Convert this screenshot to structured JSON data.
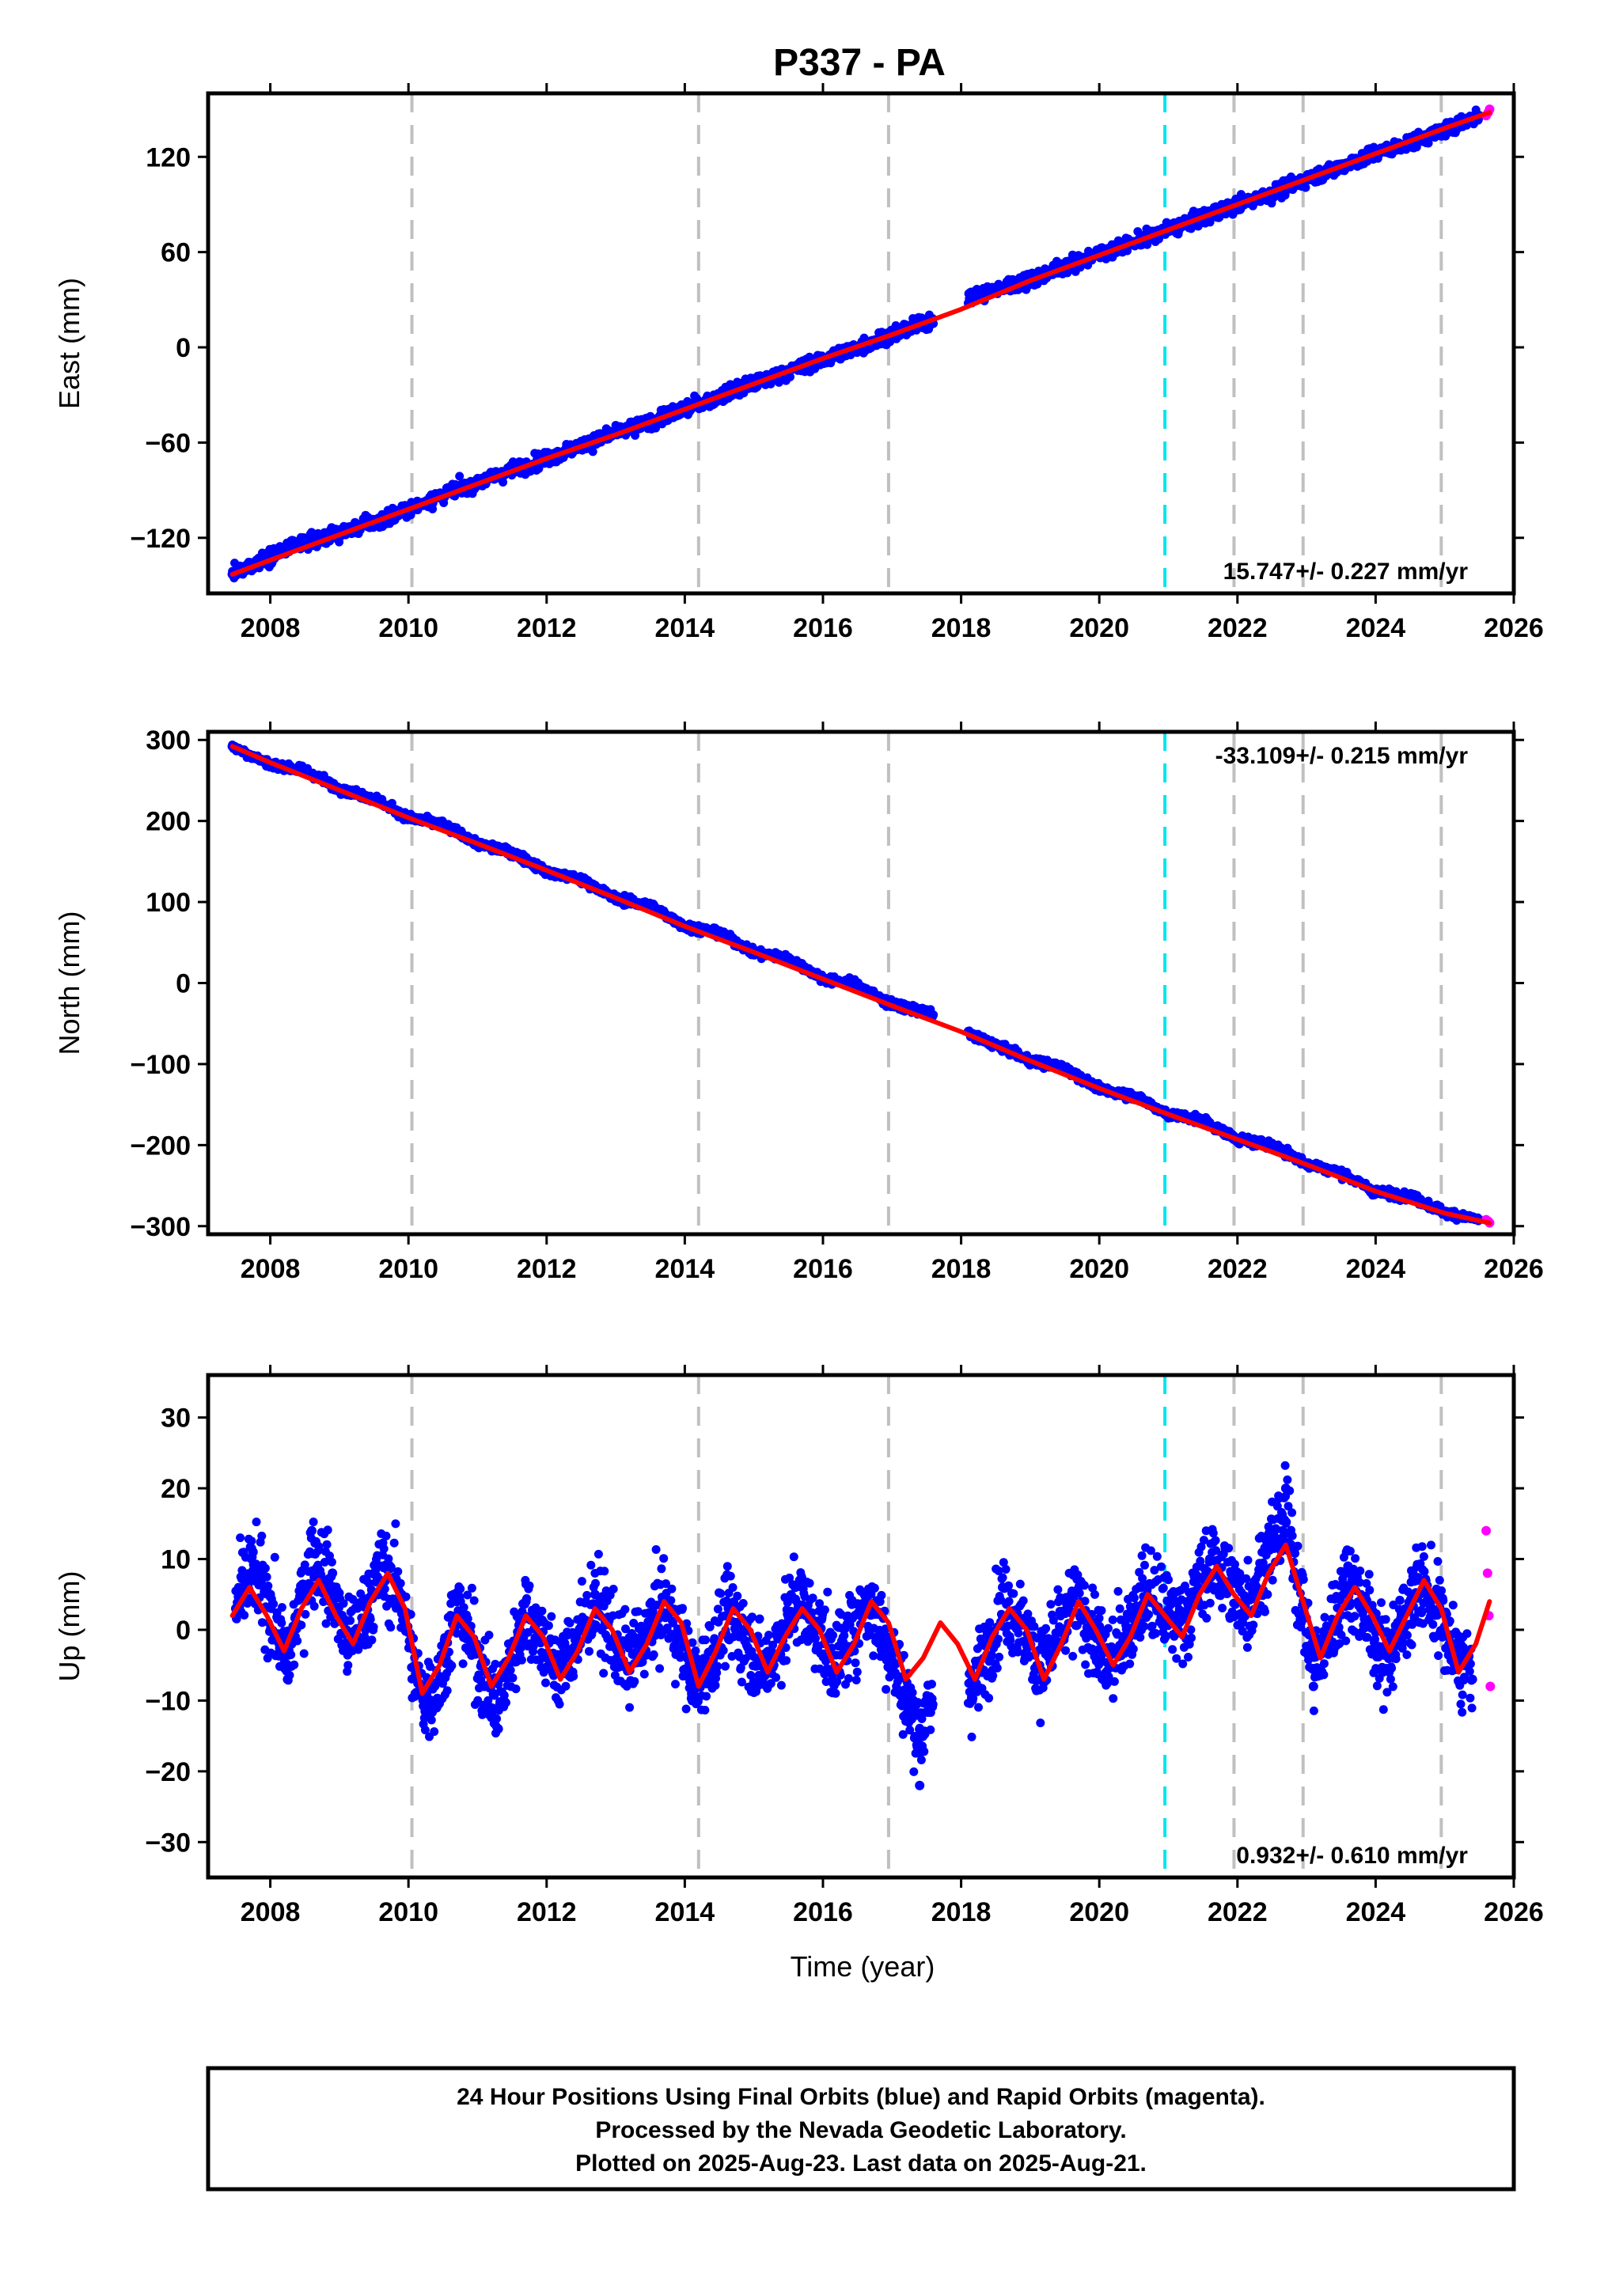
{
  "title": "P337 - PA",
  "xlabel": "Time (year)",
  "footer": {
    "lines": [
      "24 Hour Positions Using Final Orbits (blue) and Rapid Orbits (magenta).",
      "Processed by the Nevada Geodetic Laboratory.",
      "Plotted on 2025-Aug-23. Last data on 2025-Aug-21."
    ]
  },
  "colors": {
    "final_orbits": "#0000ff",
    "rapid_orbits": "#ff00ff",
    "model_fit": "#ff0000",
    "equipment_change": "#c0c0c0",
    "earthquake_or_event": "#00e5ee"
  },
  "chart_data": [
    {
      "type": "scatter",
      "panel": "east",
      "ylabel": "East (mm)",
      "xlim": [
        2007.1,
        2026.0
      ],
      "ylim": [
        -155,
        160
      ],
      "x_ticks": [
        2008,
        2010,
        2012,
        2014,
        2016,
        2018,
        2020,
        2022,
        2024,
        2026
      ],
      "y_ticks": [
        -120,
        -60,
        0,
        60,
        120
      ],
      "x_tick_labels": [
        "2008",
        "2010",
        "2012",
        "2014",
        "2016",
        "2018",
        "2020",
        "2022",
        "2024",
        "2026"
      ],
      "y_tick_labels": [
        "−120",
        "−60",
        "0",
        "60",
        "120"
      ],
      "rate_label": "15.747+/- 0.227 mm/yr",
      "rate_label_position": "bottom-right",
      "gray_dashed_lines": [
        2010.05,
        2014.2,
        2016.95,
        2021.95,
        2022.95,
        2024.95
      ],
      "cyan_dashed_lines": [
        2020.95
      ],
      "data_gap": [
        2017.6,
        2018.1
      ],
      "series": [
        {
          "name": "",
          "role": "final_orbits_daily",
          "x": [
            2007.45,
            2007.7,
            2008.0,
            2008.5,
            2009.0,
            2009.5,
            2010.0,
            2010.5,
            2011.0,
            2011.5,
            2012.0,
            2012.5,
            2013.0,
            2013.5,
            2014.0,
            2014.5,
            2015.0,
            2015.5,
            2016.0,
            2016.5,
            2017.0,
            2017.5,
            2018.2,
            2018.5,
            2019.0,
            2019.5,
            2020.0,
            2020.5,
            2021.0,
            2021.5,
            2022.0,
            2022.5,
            2023.0,
            2023.5,
            2024.0,
            2024.5,
            2025.0,
            2025.5
          ],
          "y": [
            -143,
            -138,
            -131,
            -123,
            -117,
            -110,
            -102,
            -93,
            -85,
            -77,
            -70,
            -62,
            -54,
            -47,
            -39,
            -31,
            -23,
            -15,
            -8,
            0,
            8,
            16,
            33,
            36,
            43,
            51,
            59,
            66,
            74,
            82,
            90,
            97,
            106,
            114,
            122,
            129,
            137,
            146
          ]
        },
        {
          "name": "",
          "role": "rapid_orbits_daily",
          "x": [
            2025.6,
            2025.63,
            2025.65
          ],
          "y": [
            146,
            148,
            150
          ]
        },
        {
          "name": "",
          "role": "model_fit",
          "x": [
            2007.45,
            2008.0,
            2009.0,
            2010.0,
            2011.0,
            2012.0,
            2013.0,
            2014.0,
            2015.0,
            2016.0,
            2017.0,
            2018.0,
            2019.0,
            2020.0,
            2021.0,
            2022.0,
            2023.0,
            2024.0,
            2025.0,
            2025.65
          ],
          "y": [
            -143,
            -134,
            -118,
            -102,
            -86,
            -70,
            -55,
            -39,
            -23,
            -7,
            8,
            24,
            42,
            58,
            74,
            90,
            106,
            122,
            138,
            148
          ]
        }
      ]
    },
    {
      "type": "scatter",
      "panel": "north",
      "ylabel": "North (mm)",
      "xlim": [
        2007.1,
        2026.0
      ],
      "ylim": [
        -310,
        310
      ],
      "x_ticks": [
        2008,
        2010,
        2012,
        2014,
        2016,
        2018,
        2020,
        2022,
        2024,
        2026
      ],
      "y_ticks": [
        -300,
        -200,
        -100,
        0,
        100,
        200,
        300
      ],
      "x_tick_labels": [
        "2008",
        "2010",
        "2012",
        "2014",
        "2016",
        "2018",
        "2020",
        "2022",
        "2024",
        "2026"
      ],
      "y_tick_labels": [
        "−300",
        "−200",
        "−100",
        "0",
        "100",
        "200",
        "300"
      ],
      "rate_label": "-33.109+/- 0.215 mm/yr",
      "rate_label_position": "top-right",
      "gray_dashed_lines": [
        2010.05,
        2014.2,
        2016.95,
        2021.95,
        2022.95,
        2024.95
      ],
      "cyan_dashed_lines": [
        2020.95
      ],
      "data_gap": [
        2017.6,
        2018.1
      ],
      "series": [
        {
          "name": "",
          "role": "final_orbits_daily",
          "x": [
            2007.45,
            2007.7,
            2008.0,
            2008.5,
            2009.0,
            2009.5,
            2010.0,
            2010.5,
            2011.0,
            2011.5,
            2012.0,
            2012.5,
            2013.0,
            2013.5,
            2014.0,
            2014.5,
            2015.0,
            2015.5,
            2016.0,
            2016.5,
            2017.0,
            2017.5,
            2018.2,
            2018.5,
            2019.0,
            2019.5,
            2020.0,
            2020.5,
            2021.0,
            2021.5,
            2022.0,
            2022.5,
            2023.0,
            2023.5,
            2024.0,
            2024.5,
            2025.0,
            2025.5
          ],
          "y": [
            292,
            282,
            270,
            262,
            240,
            228,
            204,
            196,
            172,
            161,
            138,
            128,
            104,
            96,
            70,
            62,
            38,
            30,
            6,
            -2,
            -27,
            -35,
            -66,
            -76,
            -96,
            -104,
            -131,
            -139,
            -162,
            -169,
            -193,
            -200,
            -223,
            -234,
            -258,
            -263,
            -283,
            -292
          ]
        },
        {
          "name": "",
          "role": "rapid_orbits_daily",
          "x": [
            2025.6,
            2025.63,
            2025.65
          ],
          "y": [
            -292,
            -294,
            -296
          ]
        },
        {
          "name": "",
          "role": "model_fit",
          "x": [
            2007.45,
            2008.0,
            2009.0,
            2010.0,
            2011.0,
            2012.0,
            2013.0,
            2014.0,
            2015.0,
            2016.0,
            2017.0,
            2018.0,
            2019.0,
            2020.0,
            2021.0,
            2022.0,
            2023.0,
            2024.0,
            2025.0,
            2025.65
          ],
          "y": [
            292,
            272,
            238,
            204,
            172,
            139,
            105,
            70,
            38,
            5,
            -28,
            -60,
            -96,
            -130,
            -162,
            -193,
            -224,
            -257,
            -284,
            -296
          ]
        }
      ]
    },
    {
      "type": "scatter",
      "panel": "up",
      "ylabel": "Up (mm)",
      "xlim": [
        2007.1,
        2026.0
      ],
      "ylim": [
        -35,
        36
      ],
      "x_ticks": [
        2008,
        2010,
        2012,
        2014,
        2016,
        2018,
        2020,
        2022,
        2024,
        2026
      ],
      "y_ticks": [
        -30,
        -20,
        -10,
        0,
        10,
        20,
        30
      ],
      "x_tick_labels": [
        "2008",
        "2010",
        "2012",
        "2014",
        "2016",
        "2018",
        "2020",
        "2022",
        "2024",
        "2026"
      ],
      "y_tick_labels": [
        "−30",
        "−20",
        "−10",
        "0",
        "10",
        "20",
        "30"
      ],
      "rate_label": "0.932+/- 0.610 mm/yr",
      "rate_label_position": "bottom-right",
      "gray_dashed_lines": [
        2010.05,
        2014.2,
        2016.95,
        2021.95,
        2022.95,
        2024.95
      ],
      "cyan_dashed_lines": [
        2020.95
      ],
      "data_gap": [
        2017.6,
        2018.1
      ],
      "series": [
        {
          "name": "",
          "role": "final_orbits_daily",
          "x": [
            2007.5,
            2007.75,
            2008.0,
            2008.25,
            2008.6,
            2008.9,
            2009.1,
            2009.6,
            2009.9,
            2010.1,
            2010.4,
            2010.7,
            2011.1,
            2011.3,
            2011.7,
            2012.1,
            2012.7,
            2013.1,
            2013.7,
            2014.1,
            2014.6,
            2015.1,
            2015.6,
            2016.1,
            2016.6,
            2017.2,
            2017.4,
            2018.3,
            2018.6,
            2019.1,
            2019.6,
            2020.1,
            2020.6,
            2021.1,
            2021.6,
            2022.1,
            2022.5,
            2022.7,
            2023.1,
            2023.6,
            2024.1,
            2024.6,
            2025.1,
            2025.4
          ],
          "y": [
            3,
            11,
            5,
            -7,
            14,
            8,
            -3,
            9,
            5,
            -9,
            -11,
            4,
            -8,
            -14,
            4,
            -6,
            5,
            -5,
            4,
            -9,
            2,
            -7,
            6,
            -4,
            5,
            -12,
            -22,
            -6,
            6,
            -5,
            5,
            -6,
            6,
            2,
            10,
            4,
            14,
            20,
            -8,
            9,
            -6,
            7,
            -3,
            -7
          ]
        },
        {
          "name": "",
          "role": "rapid_orbits_daily",
          "x": [
            2025.6,
            2025.62,
            2025.64,
            2025.66
          ],
          "y": [
            14,
            8,
            2,
            -8
          ]
        },
        {
          "name": "",
          "role": "model_fit",
          "x": [
            2007.45,
            2007.7,
            2007.95,
            2008.2,
            2008.45,
            2008.7,
            2008.95,
            2009.2,
            2009.45,
            2009.7,
            2009.95,
            2010.2,
            2010.45,
            2010.7,
            2010.95,
            2011.2,
            2011.45,
            2011.7,
            2011.95,
            2012.2,
            2012.45,
            2012.7,
            2012.95,
            2013.2,
            2013.45,
            2013.7,
            2013.95,
            2014.2,
            2014.45,
            2014.7,
            2014.95,
            2015.2,
            2015.45,
            2015.7,
            2015.95,
            2016.2,
            2016.45,
            2016.7,
            2016.95,
            2017.2,
            2017.45,
            2017.7,
            2017.95,
            2018.2,
            2018.45,
            2018.7,
            2018.95,
            2019.2,
            2019.45,
            2019.7,
            2019.95,
            2020.2,
            2020.45,
            2020.7,
            2020.95,
            2021.2,
            2021.45,
            2021.7,
            2021.95,
            2022.2,
            2022.45,
            2022.7,
            2022.95,
            2023.2,
            2023.45,
            2023.7,
            2023.95,
            2024.2,
            2024.45,
            2024.7,
            2024.95,
            2025.2,
            2025.45,
            2025.65
          ],
          "y": [
            2,
            6,
            2,
            -3,
            3,
            7,
            2,
            -2,
            4,
            8,
            3,
            -9,
            -5,
            2,
            -1,
            -8,
            -4,
            2,
            -1,
            -7,
            -3,
            3,
            0,
            -6,
            -2,
            4,
            1,
            -8,
            -3,
            3,
            0,
            -6,
            -1,
            3,
            0,
            -6,
            -2,
            4,
            1,
            -7,
            -4,
            1,
            -2,
            -7,
            -1,
            3,
            0,
            -7,
            -2,
            4,
            0,
            -5,
            -1,
            5,
            2,
            -1,
            5,
            9,
            5,
            2,
            8,
            12,
            4,
            -4,
            2,
            6,
            2,
            -3,
            2,
            7,
            3,
            -6,
            -2,
            4
          ]
        }
      ]
    }
  ]
}
